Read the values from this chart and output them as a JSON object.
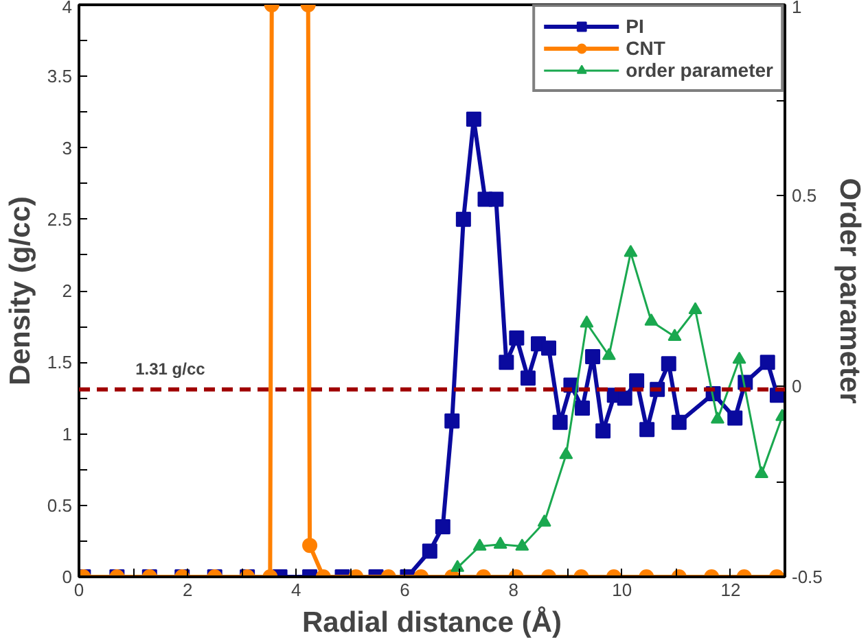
{
  "chart_data": {
    "type": "line",
    "xlabel": "Radial distance (Å)",
    "ylabel": "Density (g/cc)",
    "y2label": "Order parameter",
    "xlim": [
      0,
      13
    ],
    "ylim": [
      0,
      4
    ],
    "y2lim": [
      -0.5,
      1
    ],
    "xticks": [
      0,
      {
        "value": 1,
        "label": null
      },
      2,
      {
        "value": 3,
        "label": null
      },
      4,
      {
        "value": 5,
        "label": null
      },
      6,
      {
        "value": 7,
        "label": null
      },
      8,
      {
        "value": 9,
        "label": null
      },
      10,
      {
        "value": 11,
        "label": null
      },
      12,
      {
        "value": 13,
        "label": null
      }
    ],
    "yticks": [
      0,
      {
        "value": 0.25,
        "label": null
      },
      0.5,
      {
        "value": 0.75,
        "label": null
      },
      1,
      {
        "value": 1.25,
        "label": null
      },
      1.5,
      {
        "value": 1.75,
        "label": null
      },
      2,
      {
        "value": 2.25,
        "label": null
      },
      2.5,
      {
        "value": 2.75,
        "label": null
      },
      3,
      {
        "value": 3.25,
        "label": null
      },
      3.5,
      {
        "value": 3.75,
        "label": null
      },
      4
    ],
    "y2ticks": [
      -0.5,
      {
        "value": -0.25,
        "label": null
      },
      0,
      {
        "value": 0.25,
        "label": null
      },
      0.5,
      {
        "value": 0.75,
        "label": null
      },
      1
    ],
    "grid": false,
    "legend": "top right",
    "series": [
      {
        "name": "PI",
        "color": "#0a0a9e",
        "marker": "square",
        "x": [
          0.08,
          0.7,
          1.3,
          1.9,
          2.5,
          3.1,
          3.7,
          4.25,
          4.85,
          5.47,
          6.05,
          6.46,
          6.7,
          6.87,
          7.08,
          7.27,
          7.48,
          7.68,
          7.87,
          8.06,
          8.27,
          8.46,
          8.65,
          8.86,
          9.06,
          9.27,
          9.46,
          9.65,
          9.86,
          10.05,
          10.27,
          10.46,
          10.65,
          10.86,
          11.05,
          11.68,
          12.08,
          12.27,
          12.68,
          12.86
        ],
        "values": [
          0,
          0,
          0,
          0,
          0,
          0,
          0,
          0,
          0,
          0,
          0,
          0.18,
          0.35,
          1.09,
          2.5,
          3.2,
          2.64,
          2.64,
          1.5,
          1.67,
          1.39,
          1.63,
          1.6,
          1.08,
          1.34,
          1.18,
          1.54,
          1.02,
          1.27,
          1.25,
          1.37,
          1.03,
          1.31,
          1.49,
          1.08,
          1.28,
          1.11,
          1.36,
          1.5,
          1.27
        ]
      },
      {
        "name": "CNT",
        "color": "#ff8000",
        "marker": "circle",
        "x": [
          0.08,
          0.7,
          1.3,
          1.9,
          2.5,
          3.1,
          3.52,
          3.55,
          3.9,
          4.22,
          4.25,
          4.5,
          5.1,
          5.7,
          6.3,
          6.87,
          7.45,
          8.05,
          8.65,
          9.25,
          9.85,
          10.45,
          11.05,
          11.65,
          12.25,
          12.85
        ],
        "values": [
          0,
          0,
          0,
          0,
          0,
          0,
          0,
          4,
          null,
          4,
          0.22,
          0,
          0,
          0,
          0,
          0,
          0,
          0,
          0,
          0,
          0,
          0,
          0,
          0,
          0,
          0
        ]
      },
      {
        "name": "order parameter",
        "color": "#1aa84f",
        "marker": "triangle",
        "axis": "y2",
        "x": [
          6.97,
          7.38,
          7.76,
          8.16,
          8.57,
          8.97,
          9.35,
          9.76,
          10.16,
          10.54,
          10.97,
          11.35,
          11.76,
          12.16,
          12.57,
          12.95
        ],
        "values": [
          -0.476,
          -0.42,
          -0.415,
          -0.42,
          -0.357,
          -0.18,
          0.165,
          0.08,
          0.35,
          0.17,
          0.13,
          0.2,
          -0.087,
          0.07,
          -0.23,
          -0.08
        ]
      }
    ],
    "ref_lines": [
      {
        "axis": "y",
        "value": 1.31,
        "label": "1.31 g/cc",
        "color": "#a00000",
        "line_style": "dashed"
      }
    ]
  }
}
